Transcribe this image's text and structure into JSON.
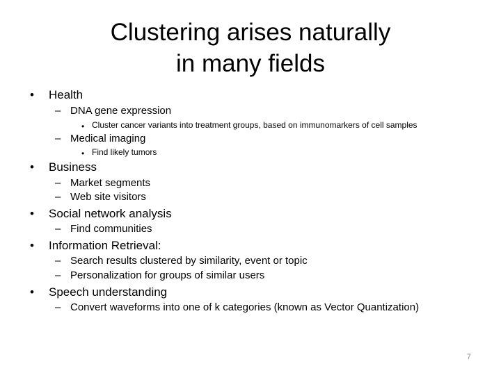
{
  "slide": {
    "title_line1": "Clustering arises naturally",
    "title_line2": "in many fields",
    "bullets": [
      {
        "level": 1,
        "text": "Health"
      },
      {
        "level": 2,
        "text": "DNA gene expression"
      },
      {
        "level": 3,
        "text": "Cluster cancer variants into treatment groups, based on immunomarkers of cell samples"
      },
      {
        "level": 2,
        "text": "Medical imaging"
      },
      {
        "level": 3,
        "text": "Find likely tumors"
      },
      {
        "level": 1,
        "text": "Business"
      },
      {
        "level": 2,
        "text": "Market segments"
      },
      {
        "level": 2,
        "text": "Web site visitors"
      },
      {
        "level": 1,
        "text": "Social network analysis"
      },
      {
        "level": 2,
        "text": "Find communities"
      },
      {
        "level": 1,
        "text": "Information Retrieval:"
      },
      {
        "level": 2,
        "text": "Search results clustered by similarity, event or topic"
      },
      {
        "level": 2,
        "text": "Personalization for groups of similar users"
      },
      {
        "level": 1,
        "text": "Speech understanding"
      },
      {
        "level": 2,
        "text": "Convert waveforms into one of k categories (known as Vector Quantization)"
      }
    ],
    "page_number": "7",
    "bullet_symbols": {
      "level1": "•",
      "level2": "–",
      "level3": "•"
    }
  }
}
